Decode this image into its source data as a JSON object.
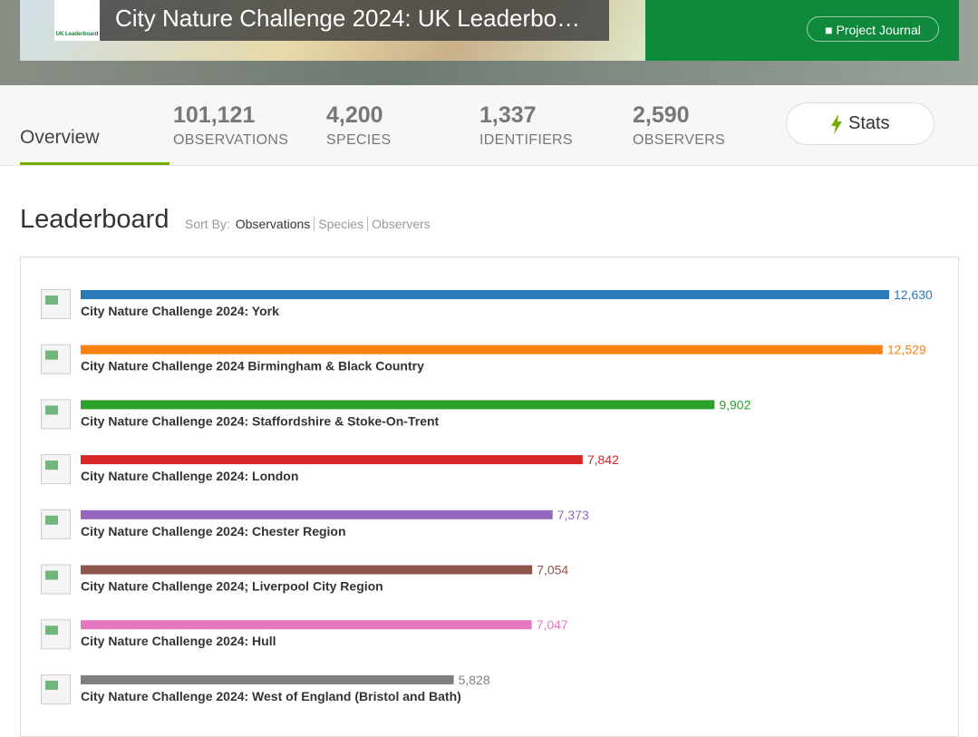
{
  "header": {
    "title": "City Nature Challenge 2024: UK Leaderbo…",
    "logo_text": "UK Leaderboard",
    "journal_button": "Project Journal"
  },
  "tabs": {
    "overview": "Overview",
    "stats": [
      {
        "value": "101,121",
        "label": "OBSERVATIONS"
      },
      {
        "value": "4,200",
        "label": "SPECIES"
      },
      {
        "value": "1,337",
        "label": "IDENTIFIERS"
      },
      {
        "value": "2,590",
        "label": "OBSERVERS"
      }
    ],
    "stats_button": "Stats"
  },
  "leaderboard": {
    "title": "Leaderboard",
    "sort_label": "Sort By:",
    "sort_options": [
      "Observations",
      "Species",
      "Observers"
    ],
    "entries": [
      {
        "name": "City Nature Challenge 2024: York",
        "value": 12630,
        "value_label": "12,630",
        "color": "#2a7ab7"
      },
      {
        "name": "City Nature Challenge 2024 Birmingham & Black Country",
        "value": 12529,
        "value_label": "12,529",
        "color": "#fd7f0e"
      },
      {
        "name": "City Nature Challenge 2024: Staffordshire & Stoke-On-Trent",
        "value": 9902,
        "value_label": "9,902",
        "color": "#2ba02b"
      },
      {
        "name": "City Nature Challenge 2024: London",
        "value": 7842,
        "value_label": "7,842",
        "color": "#d62728"
      },
      {
        "name": "City Nature Challenge 2024: Chester Region",
        "value": 7373,
        "value_label": "7,373",
        "color": "#9467bd"
      },
      {
        "name": "City Nature Challenge 2024; Liverpool City Region",
        "value": 7054,
        "value_label": "7,054",
        "color": "#8c564b"
      },
      {
        "name": "City Nature Challenge 2024: Hull",
        "value": 7047,
        "value_label": "7,047",
        "color": "#e377c2"
      },
      {
        "name": "City Nature Challenge 2024: West of England (Bristol and Bath)",
        "value": 5828,
        "value_label": "5,828",
        "color": "#7f7f7f"
      }
    ]
  }
}
